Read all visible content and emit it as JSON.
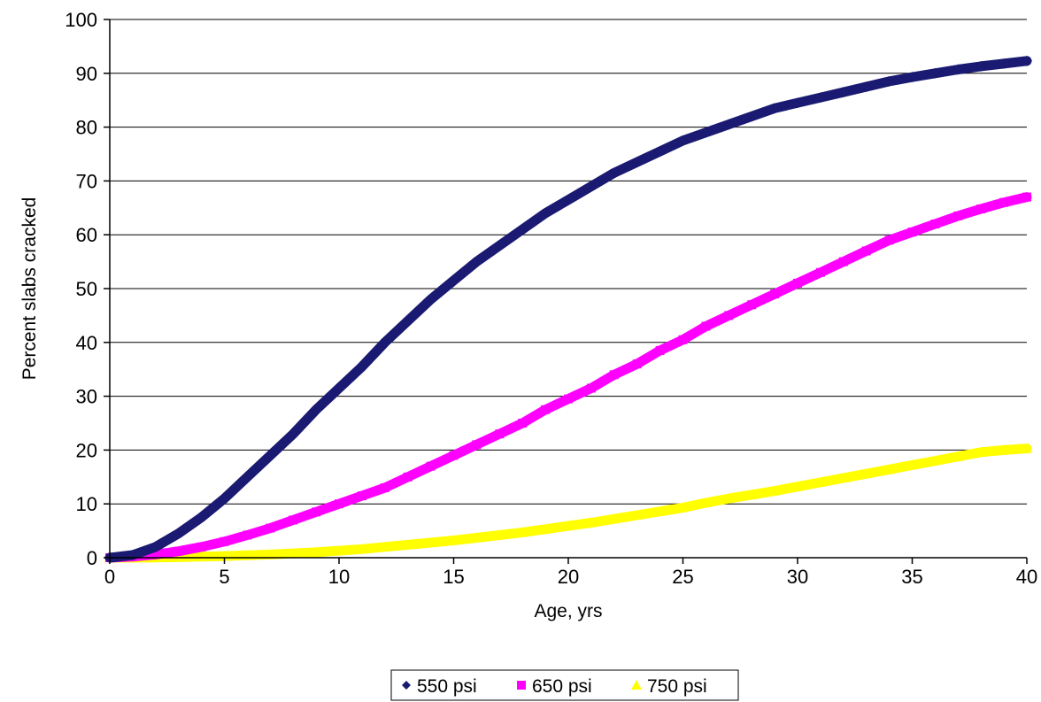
{
  "chart_data": {
    "type": "line",
    "xlabel": "Age, yrs",
    "ylabel": "Percent slabs cracked",
    "xlim": [
      0,
      40
    ],
    "ylim": [
      0,
      100
    ],
    "x_ticks": [
      0,
      5,
      10,
      15,
      20,
      25,
      30,
      35,
      40
    ],
    "y_ticks": [
      0,
      10,
      20,
      30,
      40,
      50,
      60,
      70,
      80,
      90,
      100
    ],
    "grid": "horizontal",
    "legend_position": "bottom",
    "series": [
      {
        "name": "550 psi",
        "color": "#1a1a72",
        "marker": "diamond",
        "x": [
          0,
          1,
          2,
          3,
          4,
          5,
          6,
          7,
          8,
          9,
          10,
          11,
          12,
          13,
          14,
          15,
          16,
          17,
          18,
          19,
          20,
          21,
          22,
          23,
          24,
          25,
          26,
          27,
          28,
          29,
          30,
          31,
          32,
          33,
          34,
          35,
          36,
          37,
          38,
          39,
          40
        ],
        "values": [
          0,
          0.5,
          2,
          4.5,
          7.5,
          11,
          15,
          19,
          23,
          27.5,
          31.5,
          35.5,
          40,
          44,
          48,
          51.5,
          55,
          58,
          61,
          64,
          66.5,
          69,
          71.5,
          73.5,
          75.5,
          77.5,
          79,
          80.5,
          82,
          83.5,
          84.5,
          85.5,
          86.5,
          87.5,
          88.5,
          89.3,
          90,
          90.7,
          91.3,
          91.8,
          92.3
        ]
      },
      {
        "name": "650 psi",
        "color": "#ff00ff",
        "marker": "square",
        "x": [
          0,
          1,
          2,
          3,
          4,
          5,
          6,
          7,
          8,
          9,
          10,
          11,
          12,
          13,
          14,
          15,
          16,
          17,
          18,
          19,
          20,
          21,
          22,
          23,
          24,
          25,
          26,
          27,
          28,
          29,
          30,
          31,
          32,
          33,
          34,
          35,
          36,
          37,
          38,
          39,
          40
        ],
        "values": [
          0,
          0.2,
          0.6,
          1.2,
          2,
          3,
          4.2,
          5.5,
          7,
          8.5,
          10,
          11.5,
          13,
          15,
          17,
          19,
          21,
          23,
          25,
          27.5,
          29.5,
          31.5,
          34,
          36,
          38.5,
          40.5,
          43,
          45,
          47,
          49,
          51,
          53,
          55,
          57,
          59,
          60.5,
          62,
          63.5,
          64.8,
          66,
          67
        ]
      },
      {
        "name": "750 psi",
        "color": "#ffff00",
        "marker": "triangle",
        "x": [
          0,
          1,
          2,
          3,
          4,
          5,
          6,
          7,
          8,
          9,
          10,
          11,
          12,
          13,
          14,
          15,
          16,
          17,
          18,
          19,
          20,
          21,
          22,
          23,
          24,
          25,
          26,
          27,
          28,
          29,
          30,
          31,
          32,
          33,
          34,
          35,
          36,
          37,
          38,
          39,
          40
        ],
        "values": [
          0,
          0,
          0.05,
          0.1,
          0.2,
          0.3,
          0.45,
          0.6,
          0.8,
          1,
          1.3,
          1.6,
          2,
          2.4,
          2.8,
          3.2,
          3.7,
          4.2,
          4.7,
          5.3,
          5.9,
          6.5,
          7.2,
          7.9,
          8.6,
          9.3,
          10.2,
          11,
          11.7,
          12.4,
          13.2,
          14,
          14.8,
          15.6,
          16.4,
          17.2,
          18,
          18.8,
          19.6,
          20,
          20.3
        ]
      }
    ]
  }
}
